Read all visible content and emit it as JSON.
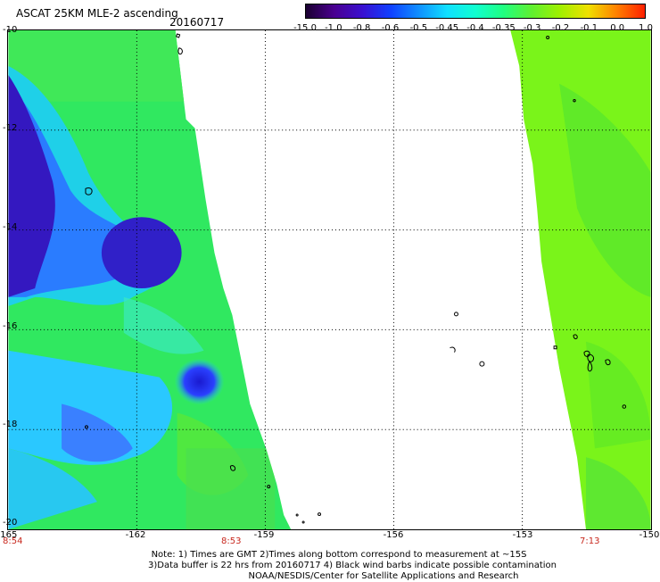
{
  "header": {
    "title": "ASCAT 25KM MLE-2 ascending",
    "date": "20160717"
  },
  "colorbar": {
    "labels": [
      "-15.0",
      "-1.0",
      "-0.8",
      "-0.6",
      "-0.5",
      "-0.45",
      "-0.4",
      "-0.35",
      "-0.3",
      "-0.2",
      "-0.1",
      "0.0",
      "1.0"
    ],
    "colors": [
      "#1a0030",
      "#4a0090",
      "#3a10d0",
      "#1040ff",
      "#1090ff",
      "#10e0ff",
      "#10ffd0",
      "#20ff80",
      "#60f030",
      "#a0f000",
      "#f0e000",
      "#ff8000",
      "#ff2000"
    ]
  },
  "axes": {
    "y_ticks": [
      "-10",
      "-12",
      "-14",
      "-16",
      "-18",
      "-20"
    ],
    "x_ticks": [
      "-165",
      "-162",
      "-159",
      "-156",
      "-153",
      "-150"
    ],
    "x_range": [
      -165,
      -150
    ],
    "y_range": [
      -10,
      -20
    ]
  },
  "times": [
    "8:54",
    "8:53",
    "7:13"
  ],
  "notes": [
    "Note: 1) Times are GMT 2)Times along bottom correspond to measurement at ~15S",
    "3)Data buffer is 22 hrs from 20160717 4) Black wind barbs indicate possible contamination",
    "NOAA/NESDIS/Center for Satellite Applications and Research"
  ]
}
